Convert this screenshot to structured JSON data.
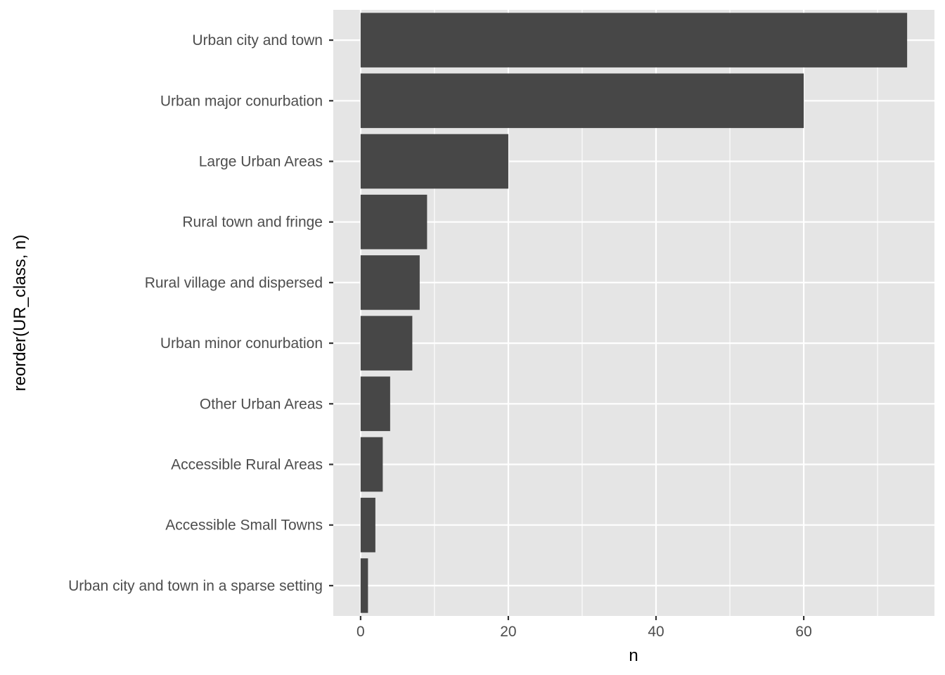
{
  "chart_data": {
    "type": "bar",
    "orientation": "horizontal",
    "categories": [
      "Urban city and town ",
      "Urban major conurbation ",
      "Large Urban Areas",
      "Rural town and fringe ",
      "Rural village and dispersed",
      "Urban minor conurbation",
      "Other Urban Areas",
      "Accessible Rural Areas",
      "Accessible Small Towns",
      "Urban city and town in a sparse setting "
    ],
    "values": [
      74,
      60,
      20,
      9,
      8,
      7,
      4,
      3,
      2,
      1
    ],
    "xlabel": "n",
    "ylabel": "reorder(UR_class, n)",
    "xlim": [
      -3.7,
      77.7
    ],
    "x_ticks": [
      0,
      20,
      40,
      60
    ],
    "x_minor_ticks": [
      10,
      30,
      50,
      70
    ],
    "grid": true,
    "colors": {
      "bar": "#474747",
      "panel_background": "#e5e5e5",
      "grid": "#ffffff",
      "tick_text": "#4d4d4d",
      "tick_mark": "#333333"
    }
  }
}
